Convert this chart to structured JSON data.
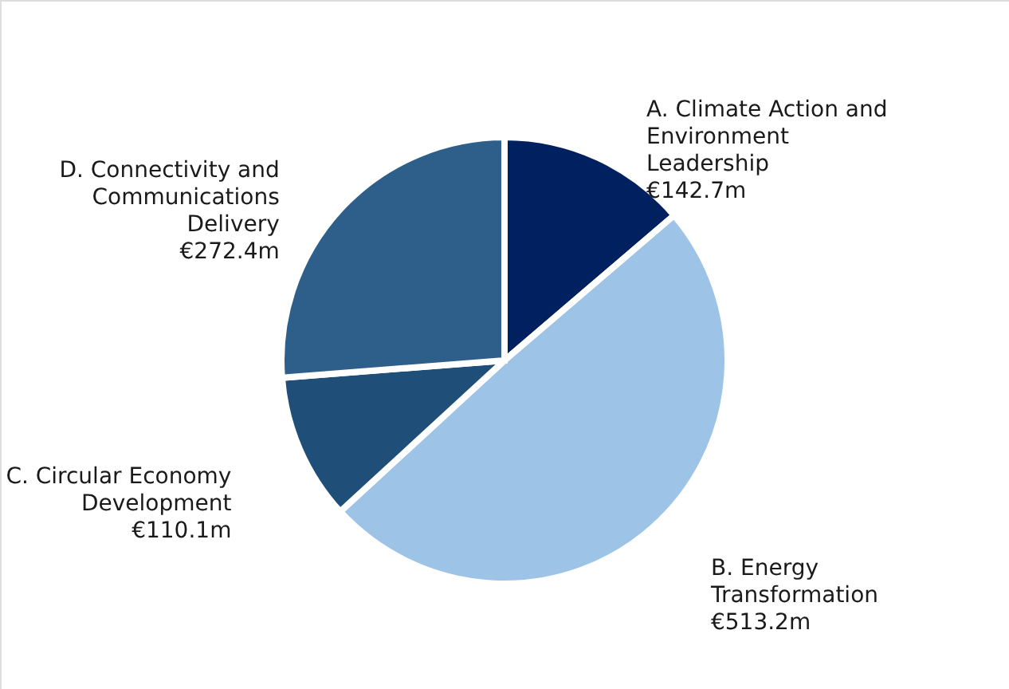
{
  "chart_data": {
    "type": "pie",
    "categories": [
      "A. Climate Action and Environment Leadership",
      "B. Energy Transformation",
      "C. Circular Economy Development",
      "D. Connectivity and Communications Delivery"
    ],
    "values": [
      142.7,
      513.2,
      110.1,
      272.4
    ],
    "value_labels": [
      "€142.7m",
      "€513.2m",
      "€110.1m",
      "€272.4m"
    ],
    "colors": [
      "#002060",
      "#9dc3e6",
      "#1f4e79",
      "#2e5f8a"
    ]
  }
}
